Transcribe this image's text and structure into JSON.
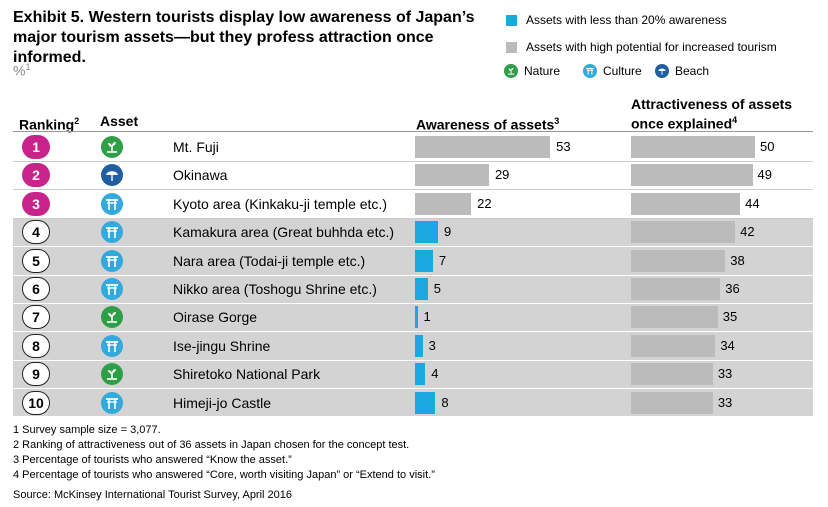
{
  "title": "Exhibit 5. Western tourists display low awareness of Japan’s major tourism assets—but they profess attraction once informed.",
  "unit": "%",
  "unit_sup": "1",
  "legend": {
    "low_awareness": "Assets with less than 20% awareness",
    "high_potential": "Assets with high potential for increased tourism",
    "nature": "Nature",
    "culture": "Culture",
    "beach": "Beach"
  },
  "headers": {
    "ranking": "Ranking",
    "ranking_sup": "2",
    "asset": "Asset",
    "awareness": "Awareness of assets",
    "awareness_sup": "3",
    "attractiveness_line1": "Attractiveness of assets",
    "attractiveness_line2": "once explained",
    "attractiveness_sup": "4"
  },
  "colors": {
    "rank_top": "#c8238a",
    "awareness_low": "#1ba7e0",
    "awareness_high": "#bbbbbb",
    "attractiveness": "#bbbbbb",
    "highlight_band": "#d3d3d3",
    "nature": "#2e9e47",
    "culture": "#33a9dd",
    "beach": "#1f5ea0"
  },
  "chart_data": {
    "type": "bar",
    "categories": [
      "Mt. Fuji",
      "Okinawa",
      "Kyoto area (Kinkaku-ji temple etc.)",
      "Kamakura area (Great buhhda etc.)",
      "Nara area (Todai-ji temple etc.)",
      "Nikko area (Toshogu Shrine etc.)",
      "Oirase Gorge",
      "Ise-jingu Shrine",
      "Shiretoko National Park",
      "Himeji-jo Castle"
    ],
    "ranks": [
      "1",
      "2",
      "3",
      "4",
      "5",
      "6",
      "7",
      "8",
      "9",
      "10"
    ],
    "asset_types": [
      "nature",
      "beach",
      "culture",
      "culture",
      "culture",
      "culture",
      "nature",
      "culture",
      "nature",
      "culture"
    ],
    "series": [
      {
        "name": "Awareness of assets",
        "values": [
          53,
          29,
          22,
          9,
          7,
          5,
          1,
          3,
          4,
          8
        ]
      },
      {
        "name": "Attractiveness of assets once explained",
        "values": [
          50,
          49,
          44,
          42,
          38,
          36,
          35,
          34,
          33,
          33
        ]
      }
    ]
  },
  "footnotes": [
    "1 Survey sample size = 3,077.",
    "2 Ranking of attractiveness out of 36 assets in Japan chosen for the concept test.",
    "3 Percentage of tourists who answered “Know the asset.”",
    "4 Percentage of tourists who answered “Core, worth visiting Japan” or “Extend to visit.”"
  ],
  "source": "Source: McKinsey International Tourist Survey, April 2016"
}
